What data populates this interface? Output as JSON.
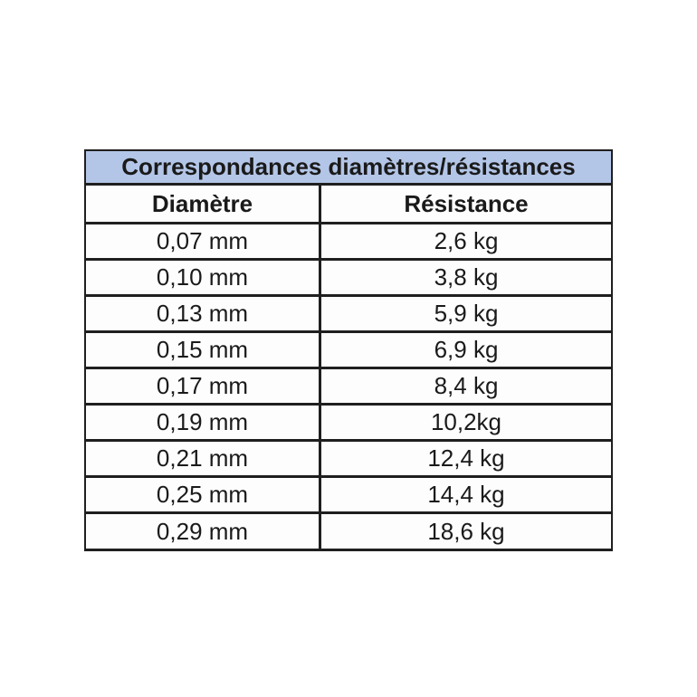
{
  "chart_data": {
    "type": "table",
    "title": "Correspondances diamètres/résistances",
    "columns": [
      "Diamètre",
      "Résistance"
    ],
    "rows": [
      [
        "0,07 mm",
        "2,6 kg"
      ],
      [
        "0,10 mm",
        "3,8 kg"
      ],
      [
        "0,13 mm",
        "5,9 kg"
      ],
      [
        "0,15 mm",
        "6,9 kg"
      ],
      [
        "0,17 mm",
        "8,4 kg"
      ],
      [
        "0,19 mm",
        "10,2kg"
      ],
      [
        "0,21 mm",
        "12,4 kg"
      ],
      [
        "0,25 mm",
        "14,4 kg"
      ],
      [
        "0,29 mm",
        "18,6 kg"
      ]
    ],
    "layout": {
      "title_position": "top-banner",
      "grid": "on"
    }
  },
  "colors": {
    "title_background": "#b4c6e7",
    "border": "#1f1f1f",
    "text": "#1a1a1a",
    "page_background": "#ffffff"
  }
}
